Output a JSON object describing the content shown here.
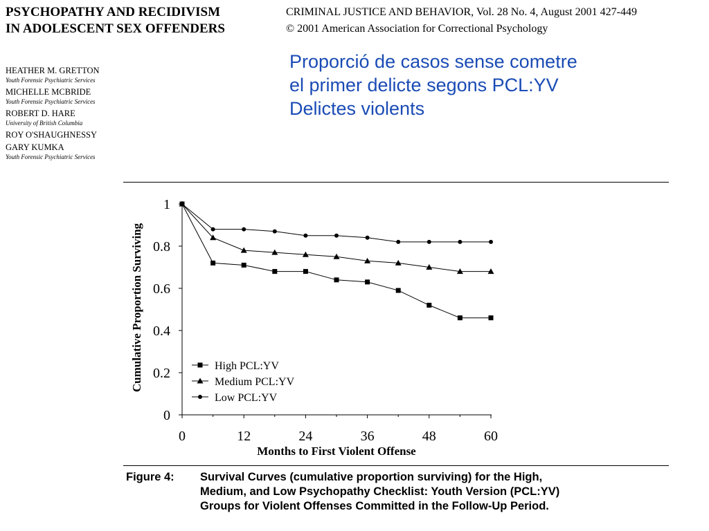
{
  "header": {
    "paper_title_lines": [
      "PSYCHOPATHY AND RECIDIVISM",
      "IN ADOLESCENT SEX OFFENDERS"
    ],
    "journal_lines": [
      "CRIMINAL JUSTICE AND BEHAVIOR, Vol. 28 No. 4, August 2001  427-449",
      "©  2001 American Association for Correctional Psychology"
    ]
  },
  "authors": [
    {
      "name": "Heather M. Gretton",
      "affiliation": "Youth Forensic Psychiatric Services"
    },
    {
      "name": "Michelle McBride",
      "affiliation": "Youth Forensic Psychiatric Services"
    },
    {
      "name": "Robert D. Hare",
      "affiliation": "University of British Columbia"
    },
    {
      "name": "Roy O'Shaughnessy",
      "affiliation": ""
    },
    {
      "name": "Gary Kumka",
      "affiliation": "Youth Forensic Psychiatric Services"
    }
  ],
  "overlay_title_lines": [
    "Proporció de casos sense cometre",
    "el primer delicte segons PCL:YV",
    "Delictes violents"
  ],
  "overlay_color": "#1a4bb5",
  "caption": {
    "label": "Figure 4:",
    "lines": [
      "Survival Curves (cumulative proportion surviving) for the High,",
      "Medium, and Low Psychopathy Checklist: Youth Version (PCL:YV)",
      "Groups for Violent Offenses Committed in the Follow-Up Period."
    ]
  },
  "chart_data": {
    "type": "line",
    "xlabel": "Months to First Violent Offense",
    "ylabel": "Cumulative Proportion Surviving",
    "xlim": [
      0,
      60
    ],
    "ylim": [
      0,
      1
    ],
    "xticks": [
      0,
      12,
      24,
      36,
      48,
      60
    ],
    "yticks": [
      0,
      0.2,
      0.4,
      0.6,
      0.8,
      1
    ],
    "grid": false,
    "legend_position": "bottom-left",
    "x": [
      0,
      6,
      12,
      18,
      24,
      30,
      36,
      42,
      48,
      54,
      60
    ],
    "series": [
      {
        "name": "High PCL:YV",
        "marker": "square",
        "values": [
          1.0,
          0.72,
          0.71,
          0.68,
          0.68,
          0.64,
          0.63,
          0.59,
          0.52,
          0.46,
          0.46
        ]
      },
      {
        "name": "Medium PCL:YV",
        "marker": "triangle",
        "values": [
          1.0,
          0.84,
          0.78,
          0.77,
          0.76,
          0.75,
          0.73,
          0.72,
          0.7,
          0.68,
          0.68
        ]
      },
      {
        "name": "Low PCL:YV",
        "marker": "circle",
        "values": [
          1.0,
          0.88,
          0.88,
          0.87,
          0.85,
          0.85,
          0.84,
          0.82,
          0.82,
          0.82,
          0.82
        ]
      }
    ]
  }
}
